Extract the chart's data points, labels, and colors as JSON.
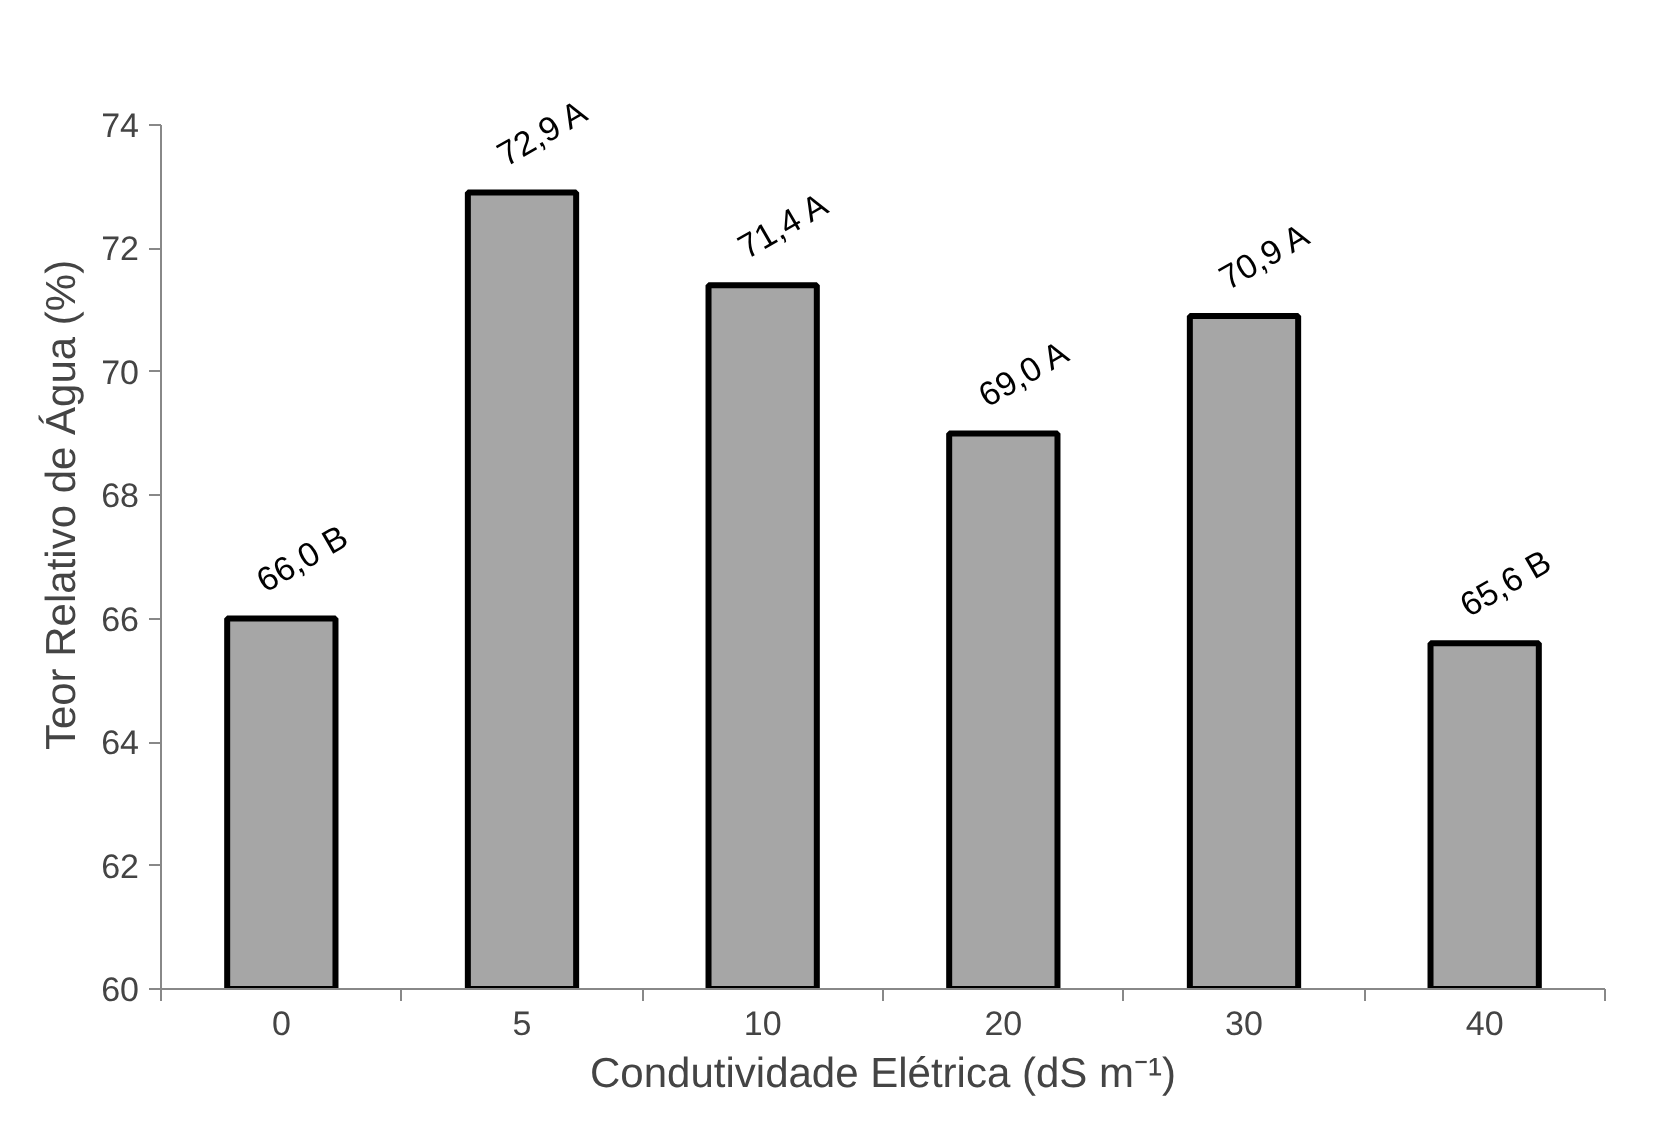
{
  "chart_data": {
    "type": "bar",
    "xlabel": "Condutividade Elétrica (dS m⁻¹)",
    "ylabel": "Teor Relativo de Água (%)",
    "categories": [
      "0",
      "5",
      "10",
      "20",
      "30",
      "40"
    ],
    "values": [
      66.0,
      72.9,
      71.4,
      69.0,
      70.9,
      65.6
    ],
    "value_labels": [
      "66,0 B",
      "72,9 A",
      "71,4 A",
      "69,0 A",
      "70,9 A",
      "65,6 B"
    ],
    "color": "#a6a6a6",
    "ylim": [
      60,
      74
    ],
    "yticks": [
      60,
      62,
      64,
      66,
      68,
      70,
      72,
      74
    ],
    "grid": false
  }
}
